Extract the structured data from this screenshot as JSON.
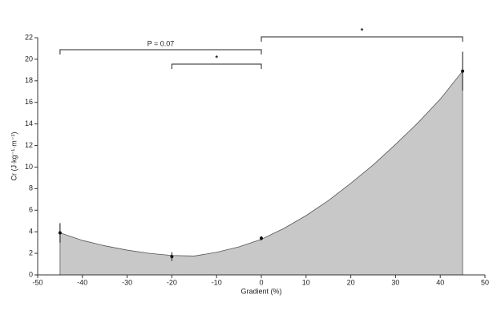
{
  "chart_data": {
    "type": "area",
    "xlabel": "Gradient (%)",
    "ylabel": "Cr (J·kg⁻¹·m⁻¹)",
    "x": [
      -45,
      -40,
      -35,
      -30,
      -25,
      -20,
      -15,
      -10,
      -5,
      0,
      5,
      10,
      15,
      20,
      25,
      30,
      35,
      40,
      45
    ],
    "values": [
      3.9,
      3.2,
      2.7,
      2.3,
      2.0,
      1.8,
      1.75,
      2.1,
      2.6,
      3.3,
      4.3,
      5.5,
      6.9,
      8.5,
      10.2,
      12.1,
      14.1,
      16.3,
      18.9
    ],
    "color": "#c8c8c8",
    "points": {
      "x": [
        -45,
        -20,
        0,
        45
      ],
      "values": [
        3.9,
        1.7,
        3.4,
        18.9
      ],
      "errors": [
        0.9,
        0.4,
        0.2,
        1.8
      ]
    },
    "comparisons": [
      {
        "label": "P = 0.07",
        "x": [
          -45,
          0
        ]
      },
      {
        "label": "*",
        "x": [
          -20,
          0
        ]
      },
      {
        "label": "*",
        "x": [
          0,
          45
        ]
      }
    ],
    "xlim": [
      -50,
      50
    ],
    "xticks": [
      -50,
      -40,
      -30,
      -20,
      -10,
      0,
      10,
      20,
      30,
      40,
      50
    ],
    "ylim": [
      0,
      22
    ],
    "yticks": [
      0,
      2,
      4,
      6,
      8,
      10,
      12,
      14,
      16,
      18,
      20,
      22
    ]
  }
}
